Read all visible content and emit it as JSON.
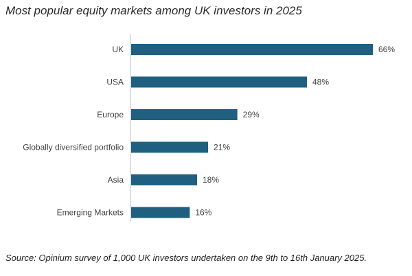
{
  "chart_data": {
    "type": "bar",
    "orientation": "horizontal",
    "title": "Most popular equity markets among UK investors in 2025",
    "categories": [
      "UK",
      "USA",
      "Europe",
      "Globally diversified portfolio",
      "Asia",
      "Emerging Markets"
    ],
    "values": [
      66,
      48,
      29,
      21,
      18,
      16
    ],
    "value_labels": [
      "66%",
      "48%",
      "29%",
      "21%",
      "18%",
      "16%"
    ],
    "unit": "%",
    "xlim": [
      0,
      66
    ],
    "bar_color": "#1f5f80",
    "axis_color": "#bfbfbf",
    "grid": false,
    "legend": "none",
    "source": "Source: Opinium survey of 1,000 UK investors undertaken on the 9th to 16th January 2025."
  }
}
